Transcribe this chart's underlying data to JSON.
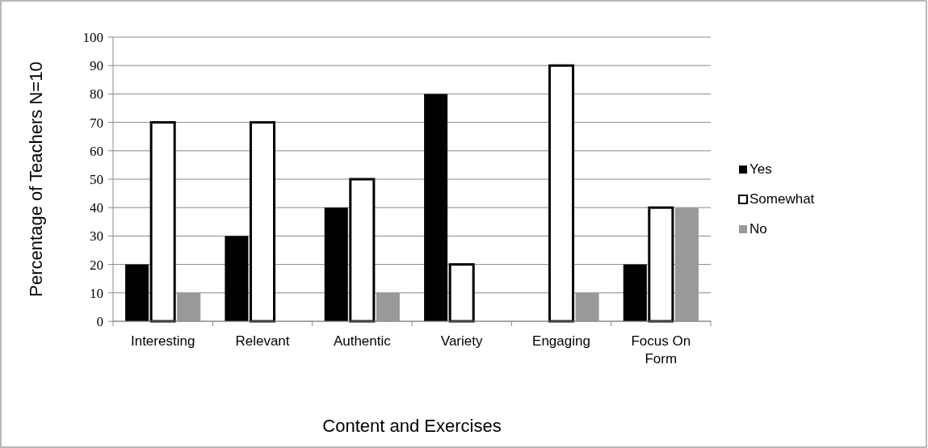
{
  "chart_data": {
    "type": "bar",
    "xlabel": "Content and Exercises",
    "ylabel": "Percentage of Teachers N=10",
    "categories": [
      "Interesting",
      "Relevant",
      "Authentic",
      "Variety",
      "Engaging",
      "Focus On Form"
    ],
    "series": [
      {
        "name": "Yes",
        "color": "#000000",
        "values": [
          20,
          30,
          40,
          80,
          0,
          20
        ]
      },
      {
        "name": "Somewhat",
        "color": "#ffffff",
        "values": [
          70,
          70,
          50,
          20,
          90,
          40
        ]
      },
      {
        "name": "No",
        "color": "#999999",
        "values": [
          10,
          0,
          10,
          0,
          10,
          40
        ]
      }
    ],
    "ylim": [
      0,
      100
    ],
    "yticks": [
      0,
      10,
      20,
      30,
      40,
      50,
      60,
      70,
      80,
      90,
      100
    ],
    "grid": "y",
    "legend": "right"
  }
}
